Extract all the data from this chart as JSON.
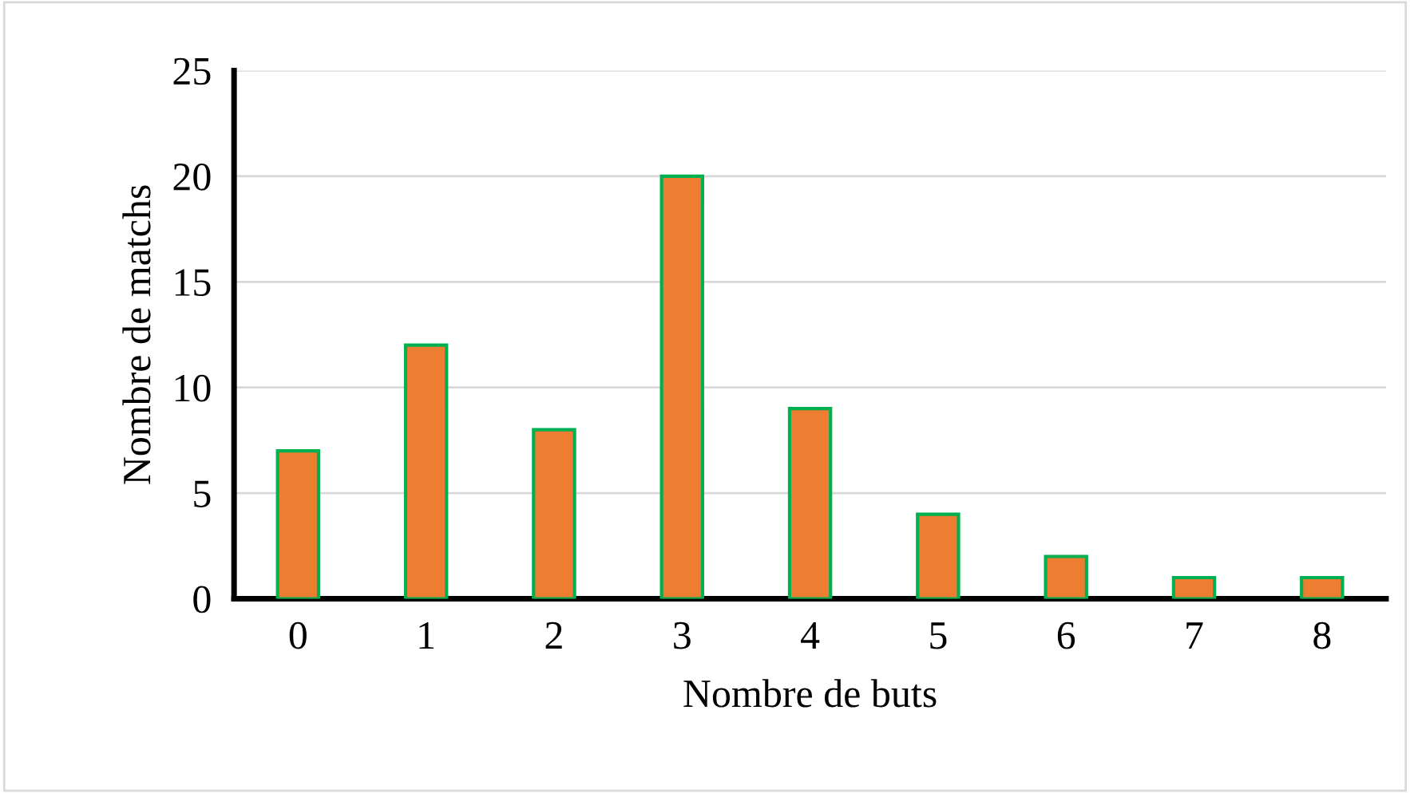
{
  "chart_data": {
    "type": "bar",
    "xlabel": "Nombre de buts",
    "ylabel": "Nombre de matchs",
    "categories": [
      "0",
      "1",
      "2",
      "3",
      "4",
      "5",
      "6",
      "7",
      "8"
    ],
    "series": [
      {
        "color": "#ed7d31",
        "values": [
          7,
          12,
          8,
          20,
          9,
          4,
          2,
          1,
          1
        ]
      }
    ],
    "ylim": [
      0,
      25
    ],
    "yticks": [
      0,
      5,
      10,
      15,
      20,
      25
    ],
    "grid": "y",
    "legend": false
  }
}
